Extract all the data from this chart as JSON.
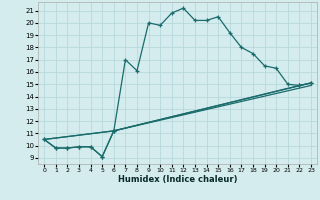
{
  "xlabel": "Humidex (Indice chaleur)",
  "bg_color": "#d4ecee",
  "grid_color": "#b8d8dc",
  "line_color": "#1a6b6b",
  "xlim": [
    -0.5,
    23.5
  ],
  "ylim": [
    8.5,
    21.7
  ],
  "xticks": [
    0,
    1,
    2,
    3,
    4,
    5,
    6,
    7,
    8,
    9,
    10,
    11,
    12,
    13,
    14,
    15,
    16,
    17,
    18,
    19,
    20,
    21,
    22,
    23
  ],
  "yticks": [
    9,
    10,
    11,
    12,
    13,
    14,
    15,
    16,
    17,
    18,
    19,
    20,
    21
  ],
  "main_line": {
    "x": [
      0,
      1,
      2,
      3,
      4,
      5,
      6,
      7,
      8,
      9,
      10,
      11,
      12,
      13,
      14,
      15,
      16,
      17,
      18,
      19,
      20,
      21,
      22,
      23
    ],
    "y": [
      10.5,
      9.8,
      9.8,
      9.9,
      9.9,
      9.1,
      11.2,
      17.0,
      16.1,
      20.0,
      19.8,
      20.8,
      21.2,
      20.2,
      20.2,
      20.5,
      19.2,
      18.0,
      17.5,
      16.5,
      16.3,
      15.0,
      14.9,
      15.1
    ]
  },
  "line2": {
    "x": [
      0,
      1,
      2,
      3,
      4,
      5,
      6,
      22,
      23
    ],
    "y": [
      10.5,
      9.8,
      9.8,
      9.9,
      9.9,
      9.1,
      11.2,
      14.9,
      15.1
    ]
  },
  "line3": {
    "x": [
      0,
      6,
      23
    ],
    "y": [
      10.5,
      11.2,
      15.1
    ]
  },
  "line4": {
    "x": [
      0,
      6,
      23
    ],
    "y": [
      10.5,
      11.2,
      14.9
    ]
  }
}
